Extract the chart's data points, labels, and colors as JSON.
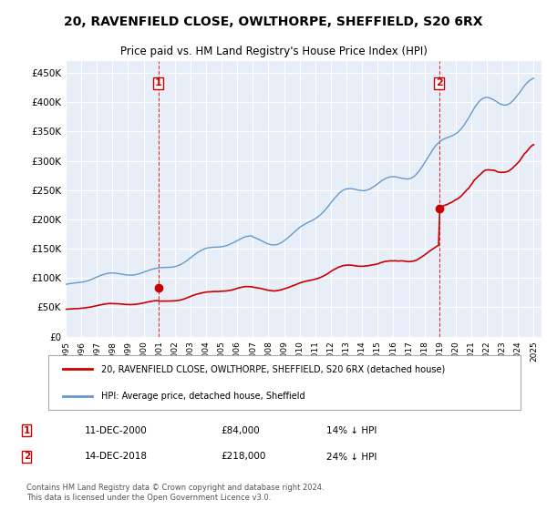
{
  "title1": "20, RAVENFIELD CLOSE, OWLTHORPE, SHEFFIELD, S20 6RX",
  "title2": "Price paid vs. HM Land Registry's House Price Index (HPI)",
  "legend_line1": "20, RAVENFIELD CLOSE, OWLTHORPE, SHEFFIELD, S20 6RX (detached house)",
  "legend_line2": "HPI: Average price, detached house, Sheffield",
  "note": "Contains HM Land Registry data © Crown copyright and database right 2024.\nThis data is licensed under the Open Government Licence v3.0.",
  "point1_label": "1",
  "point1_date": "11-DEC-2000",
  "point1_price": "£84,000",
  "point1_hpi": "14% ↓ HPI",
  "point1_x": 2000.95,
  "point1_y": 84000,
  "point2_label": "2",
  "point2_date": "14-DEC-2018",
  "point2_price": "£218,000",
  "point2_hpi": "24% ↓ HPI",
  "point2_x": 2018.95,
  "point2_y": 218000,
  "ylim": [
    0,
    470000
  ],
  "xlim": [
    1995.0,
    2025.5
  ],
  "yticks": [
    0,
    50000,
    100000,
    150000,
    200000,
    250000,
    300000,
    350000,
    400000,
    450000
  ],
  "ytick_labels": [
    "£0",
    "£50K",
    "£100K",
    "£150K",
    "£200K",
    "£250K",
    "£300K",
    "£350K",
    "£400K",
    "£450K"
  ],
  "xtick_years": [
    1995,
    1996,
    1997,
    1998,
    1999,
    2000,
    2001,
    2002,
    2003,
    2004,
    2005,
    2006,
    2007,
    2008,
    2009,
    2010,
    2011,
    2012,
    2013,
    2014,
    2015,
    2016,
    2017,
    2018,
    2019,
    2020,
    2021,
    2022,
    2023,
    2024,
    2025
  ],
  "bg_color": "#e8eef7",
  "line_color_red": "#cc0000",
  "line_color_blue": "#6699cc",
  "grid_color": "#ffffff",
  "marker_color_red": "#cc0000",
  "dashed_line_color": "#cc0000",
  "box_border_color": "#cc0000"
}
